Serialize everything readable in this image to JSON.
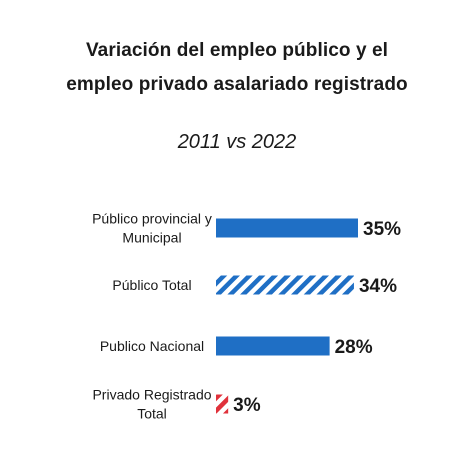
{
  "chart_data": {
    "type": "bar",
    "orientation": "horizontal",
    "title": "Variación del empleo público y el empleo privado asalariado registrado",
    "title_lines": [
      "Variación del empleo público y el",
      "empleo privado asalariado registrado"
    ],
    "subtitle": "2011 vs 2022",
    "xlabel": "",
    "ylabel": "",
    "xlim": [
      0,
      35
    ],
    "grid": false,
    "categories": [
      [
        "Público provincial y",
        "Municipal"
      ],
      [
        "Público Total"
      ],
      [
        "Publico Nacional"
      ],
      [
        "Privado Registrado",
        "Total"
      ]
    ],
    "values": [
      35,
      34,
      28,
      3
    ],
    "value_labels": [
      "35%",
      "34%",
      "28%",
      "3%"
    ],
    "styles": [
      "solid",
      "hatched",
      "solid",
      "hatched"
    ],
    "colors": [
      "#1f6fc5",
      "#1f6fc5",
      "#1f6fc5",
      "#e0313b"
    ]
  }
}
